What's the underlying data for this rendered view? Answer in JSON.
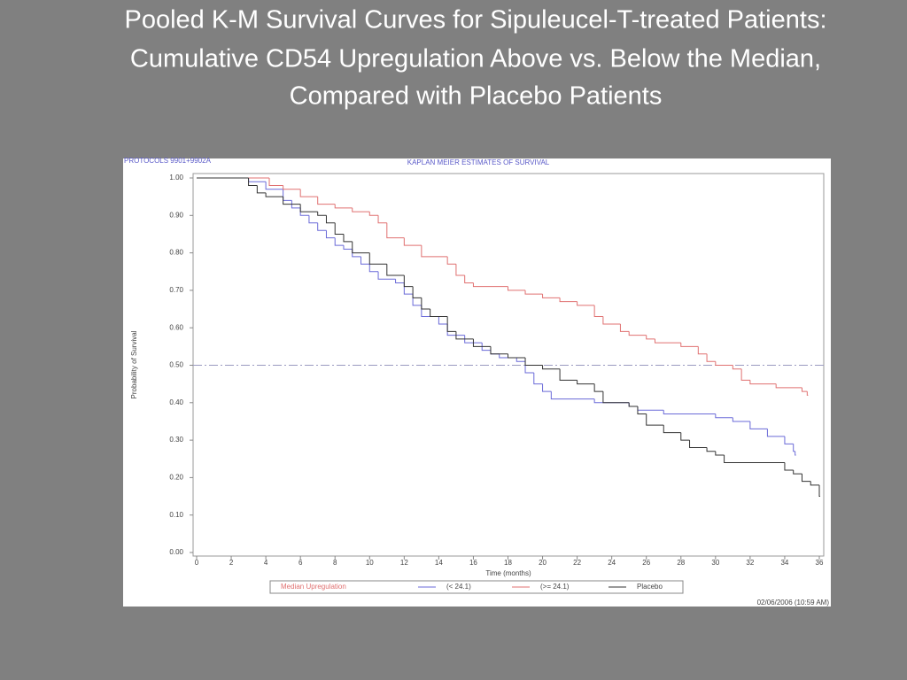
{
  "chart_data": {
    "type": "line",
    "step": true,
    "title": [
      "Pooled K-M Survival Curves for Sipuleucel-T-treated Patients:",
      "Cumulative CD54 Upregulation Above vs. Below the Median,",
      "Compared with Placebo Patients"
    ],
    "protocol": "PROTOCOLS 9901+9902A",
    "subtitle": "KAPLAN MEIER ESTIMATES OF SURVIVAL",
    "xlabel": "Time (months)",
    "ylabel": "Probability of Survival",
    "legend_title": "Median Upregulation",
    "legend_title_color": "#e07070",
    "footer": "02/06/2006 (10:59 AM)",
    "xlim": [
      0,
      36
    ],
    "xticks": [
      0,
      2,
      4,
      6,
      8,
      10,
      12,
      14,
      16,
      18,
      20,
      22,
      24,
      26,
      28,
      30,
      32,
      34,
      36
    ],
    "ylim": [
      0,
      1
    ],
    "yticks": [
      {
        "value": 0,
        "label": "0.00"
      },
      {
        "value": 0.1,
        "label": "0.10"
      },
      {
        "value": 0.2,
        "label": "0.20"
      },
      {
        "value": 0.3,
        "label": "0.30"
      },
      {
        "value": 0.4,
        "label": "0.40"
      },
      {
        "value": 0.5,
        "label": "0.50"
      },
      {
        "value": 0.6,
        "label": "0.60"
      },
      {
        "value": 0.7,
        "label": "0.70"
      },
      {
        "value": 0.8,
        "label": "0.80"
      },
      {
        "value": 0.9,
        "label": "0.90"
      },
      {
        "value": 1,
        "label": "1.00"
      }
    ],
    "reference_line": 0.5,
    "series": [
      {
        "name": "(< 24.1)",
        "color": "#6a6ad8",
        "x": [
          0,
          3,
          4,
          5,
          5.5,
          6,
          6.5,
          7,
          7.5,
          8,
          8.5,
          9,
          9.5,
          10,
          10.5,
          11.5,
          12,
          12.5,
          13,
          14,
          14.5,
          15.5,
          16.5,
          17,
          17.5,
          18.5,
          19,
          19.5,
          20,
          20.5,
          23,
          25,
          25.5,
          27,
          30,
          31,
          32,
          33,
          34,
          34.5,
          34.6
        ],
        "values": [
          1,
          0.99,
          0.97,
          0.94,
          0.92,
          0.9,
          0.88,
          0.86,
          0.84,
          0.82,
          0.81,
          0.79,
          0.77,
          0.75,
          0.73,
          0.72,
          0.69,
          0.66,
          0.63,
          0.61,
          0.58,
          0.56,
          0.54,
          0.53,
          0.52,
          0.51,
          0.48,
          0.45,
          0.43,
          0.41,
          0.4,
          0.39,
          0.38,
          0.37,
          0.36,
          0.35,
          0.33,
          0.31,
          0.29,
          0.27,
          0.26
        ]
      },
      {
        "name": "(>= 24.1)",
        "color": "#e07070",
        "x": [
          0,
          4.2,
          5,
          6,
          7,
          8,
          9,
          10,
          10.5,
          11,
          12,
          13,
          14.5,
          15,
          15.5,
          16,
          18,
          19,
          20,
          21,
          22,
          23,
          23.5,
          24.5,
          25,
          26,
          26.5,
          28,
          29,
          29.5,
          30,
          31,
          31.5,
          32,
          33.5,
          35,
          35.3
        ],
        "values": [
          1,
          0.98,
          0.97,
          0.95,
          0.93,
          0.92,
          0.91,
          0.9,
          0.88,
          0.84,
          0.82,
          0.79,
          0.77,
          0.74,
          0.72,
          0.71,
          0.7,
          0.69,
          0.68,
          0.67,
          0.66,
          0.63,
          0.61,
          0.59,
          0.58,
          0.57,
          0.56,
          0.55,
          0.53,
          0.51,
          0.5,
          0.49,
          0.46,
          0.45,
          0.44,
          0.43,
          0.42
        ]
      },
      {
        "name": "Placebo",
        "color": "#333333",
        "x": [
          0,
          3,
          3.5,
          4,
          5,
          6,
          7,
          7.5,
          8,
          8.5,
          9,
          10,
          11,
          12,
          12.5,
          13,
          13.5,
          14.5,
          15,
          16,
          17,
          18,
          19,
          20,
          21,
          22,
          23,
          23.5,
          25,
          25.5,
          26,
          27,
          28,
          28.5,
          29.5,
          30,
          30.5,
          34,
          34.5,
          35,
          35.5,
          36
        ],
        "values": [
          1,
          0.98,
          0.96,
          0.95,
          0.93,
          0.91,
          0.9,
          0.88,
          0.85,
          0.83,
          0.8,
          0.77,
          0.74,
          0.71,
          0.68,
          0.65,
          0.63,
          0.59,
          0.57,
          0.55,
          0.53,
          0.52,
          0.5,
          0.49,
          0.46,
          0.45,
          0.43,
          0.4,
          0.39,
          0.37,
          0.34,
          0.32,
          0.3,
          0.28,
          0.27,
          0.26,
          0.24,
          0.22,
          0.21,
          0.19,
          0.18,
          0.15
        ]
      }
    ]
  }
}
